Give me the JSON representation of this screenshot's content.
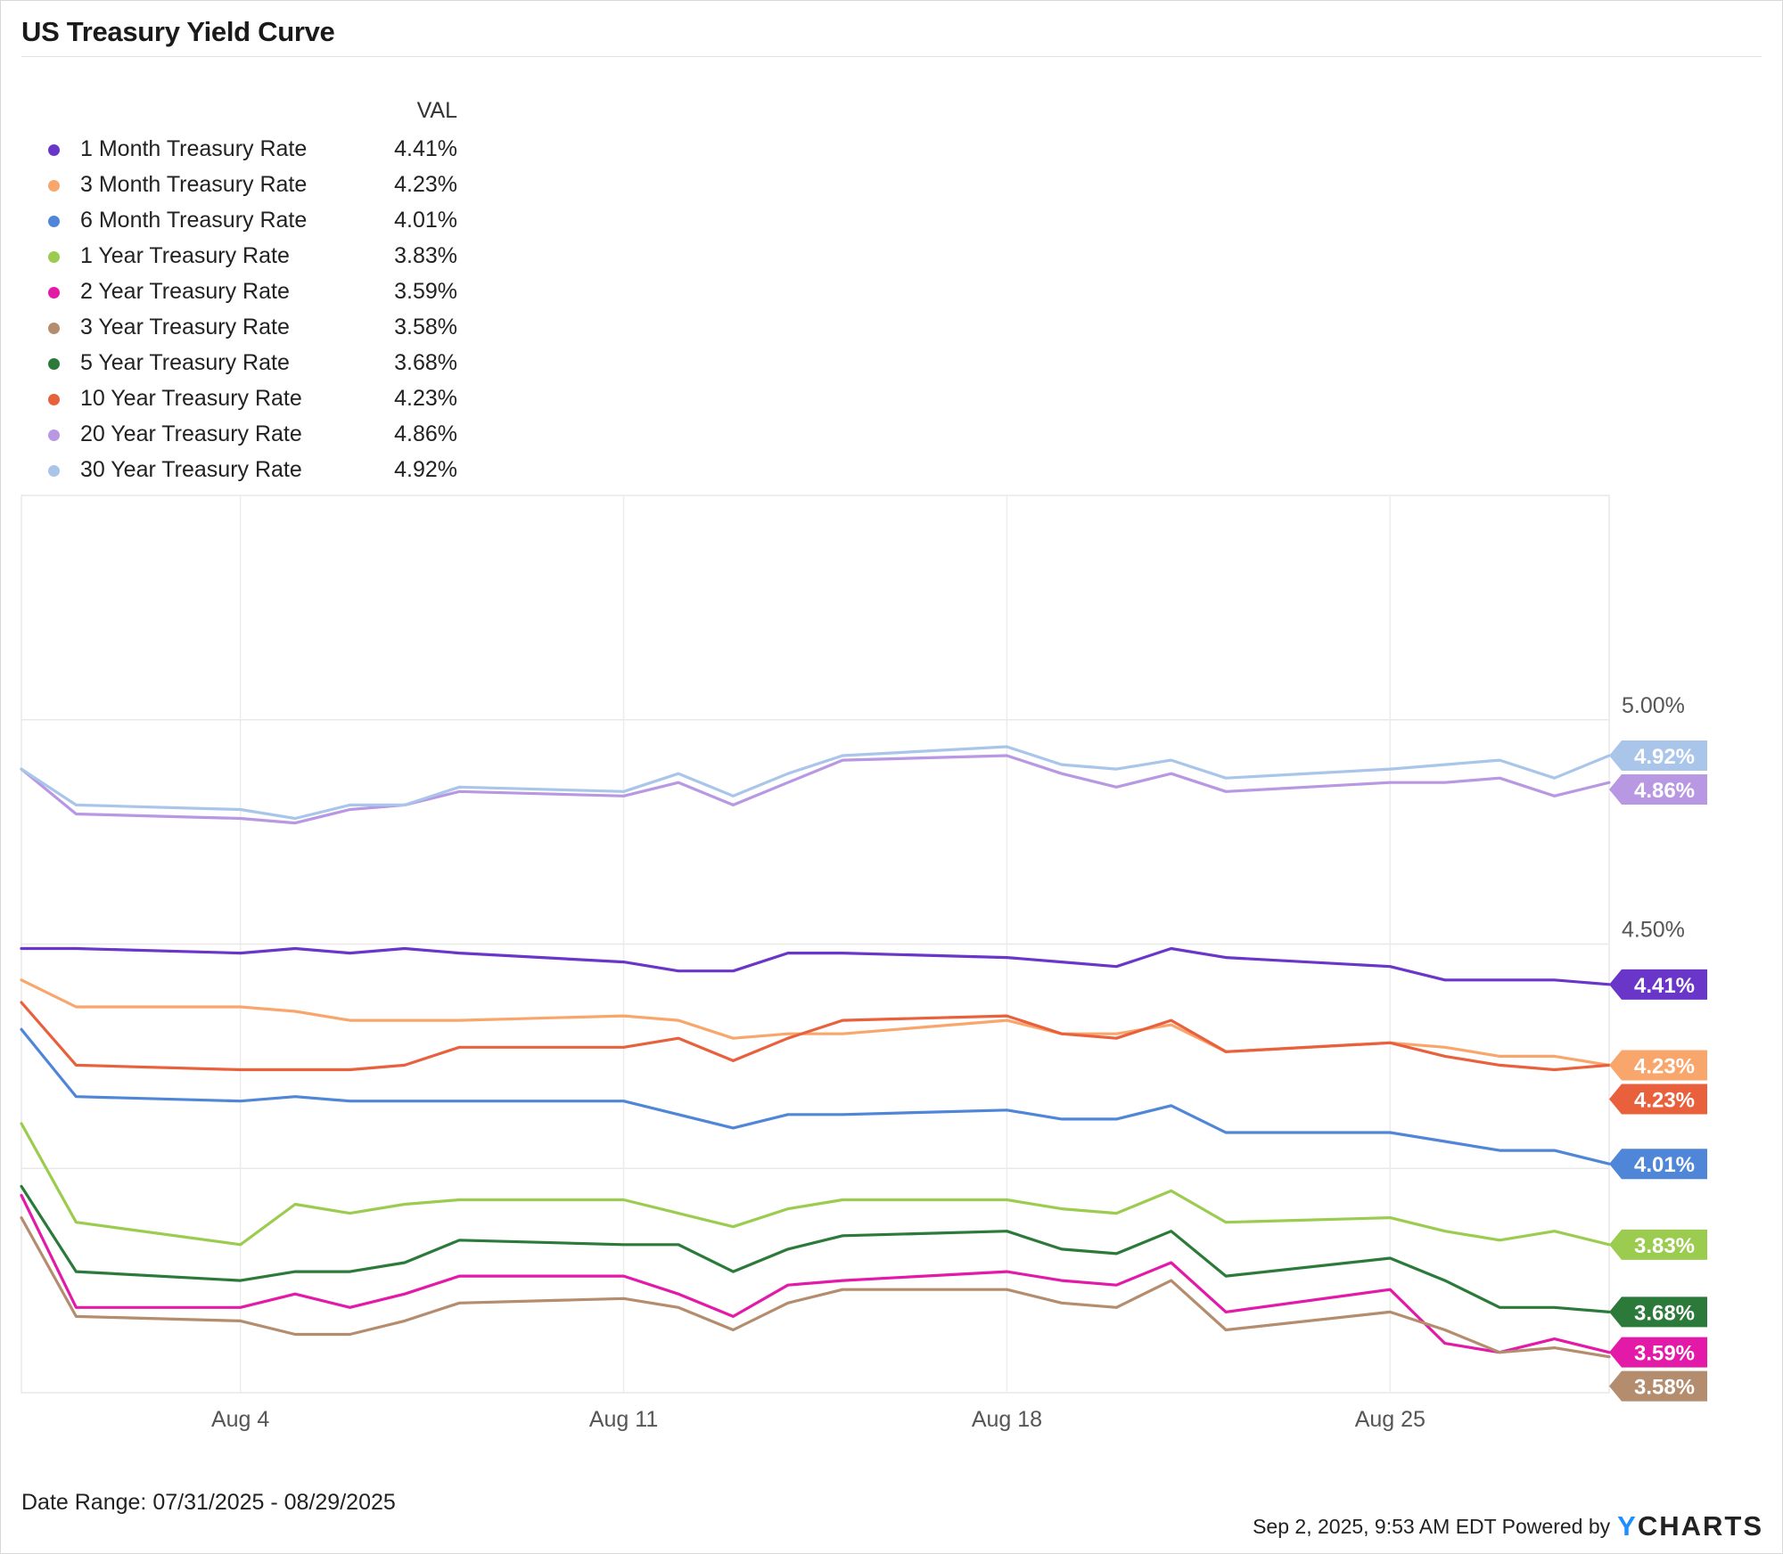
{
  "title": "US Treasury Yield Curve",
  "legend_header": "VAL",
  "footer": {
    "date_range": "Date Range: 07/31/2025 - 08/29/2025",
    "timestamp": "Sep 2, 2025, 9:53 AM EDT Powered by",
    "brand_y": "Y",
    "brand_rest": "CHARTS"
  },
  "chart_data": {
    "type": "line",
    "title": "US Treasury Yield Curve",
    "x": [
      "2025-07-31",
      "2025-08-01",
      "2025-08-04",
      "2025-08-05",
      "2025-08-06",
      "2025-08-07",
      "2025-08-08",
      "2025-08-11",
      "2025-08-12",
      "2025-08-13",
      "2025-08-14",
      "2025-08-15",
      "2025-08-18",
      "2025-08-19",
      "2025-08-20",
      "2025-08-21",
      "2025-08-22",
      "2025-08-25",
      "2025-08-26",
      "2025-08-27",
      "2025-08-28",
      "2025-08-29"
    ],
    "x_tick_labels": [
      {
        "date": "2025-08-04",
        "label": "Aug 4"
      },
      {
        "date": "2025-08-11",
        "label": "Aug 11"
      },
      {
        "date": "2025-08-18",
        "label": "Aug 18"
      },
      {
        "date": "2025-08-25",
        "label": "Aug 25"
      }
    ],
    "y_ticks": [
      {
        "value": 5.0,
        "label": "5.00%"
      },
      {
        "value": 4.5,
        "label": "4.50%"
      }
    ],
    "y_gridlines": [
      5.0,
      4.5,
      4.0
    ],
    "ylim": [
      3.5,
      5.5
    ],
    "y_unit": "%",
    "grid": true,
    "legend_position": "top-left",
    "series": [
      {
        "name": "1 Month Treasury Rate",
        "label": "4.41%",
        "color": "#6a35c9",
        "values": [
          4.49,
          4.49,
          4.48,
          4.49,
          4.48,
          4.49,
          4.48,
          4.46,
          4.44,
          4.44,
          4.48,
          4.48,
          4.47,
          4.46,
          4.45,
          4.49,
          4.47,
          4.45,
          4.42,
          4.42,
          4.42,
          4.41
        ]
      },
      {
        "name": "3 Month Treasury Rate",
        "label": "4.23%",
        "color": "#f9a66c",
        "values": [
          4.42,
          4.36,
          4.36,
          4.35,
          4.33,
          4.33,
          4.33,
          4.34,
          4.33,
          4.29,
          4.3,
          4.3,
          4.33,
          4.3,
          4.3,
          4.32,
          4.26,
          4.28,
          4.27,
          4.25,
          4.25,
          4.23
        ]
      },
      {
        "name": "6 Month Treasury Rate",
        "label": "4.01%",
        "color": "#4f86d8",
        "values": [
          4.31,
          4.16,
          4.15,
          4.16,
          4.15,
          4.15,
          4.15,
          4.15,
          4.12,
          4.09,
          4.12,
          4.12,
          4.13,
          4.11,
          4.11,
          4.14,
          4.08,
          4.08,
          4.06,
          4.04,
          4.04,
          4.01
        ]
      },
      {
        "name": "1 Year Treasury Rate",
        "label": "3.83%",
        "color": "#9ccc4f",
        "values": [
          4.1,
          3.88,
          3.83,
          3.92,
          3.9,
          3.92,
          3.93,
          3.93,
          3.9,
          3.87,
          3.91,
          3.93,
          3.93,
          3.91,
          3.9,
          3.95,
          3.88,
          3.89,
          3.86,
          3.84,
          3.86,
          3.83
        ]
      },
      {
        "name": "2 Year Treasury Rate",
        "label": "3.59%",
        "color": "#e31aa8",
        "values": [
          3.94,
          3.69,
          3.69,
          3.72,
          3.69,
          3.72,
          3.76,
          3.76,
          3.72,
          3.67,
          3.74,
          3.75,
          3.77,
          3.75,
          3.74,
          3.79,
          3.68,
          3.73,
          3.61,
          3.59,
          3.62,
          3.59
        ]
      },
      {
        "name": "3 Year Treasury Rate",
        "label": "3.58%",
        "color": "#b48c6e",
        "values": [
          3.89,
          3.67,
          3.66,
          3.63,
          3.63,
          3.66,
          3.7,
          3.71,
          3.69,
          3.64,
          3.7,
          3.73,
          3.73,
          3.7,
          3.69,
          3.75,
          3.64,
          3.68,
          3.64,
          3.59,
          3.6,
          3.58
        ]
      },
      {
        "name": "5 Year Treasury Rate",
        "label": "3.68%",
        "color": "#2c7a3a",
        "values": [
          3.96,
          3.77,
          3.75,
          3.77,
          3.77,
          3.79,
          3.84,
          3.83,
          3.83,
          3.77,
          3.82,
          3.85,
          3.86,
          3.82,
          3.81,
          3.86,
          3.76,
          3.8,
          3.75,
          3.69,
          3.69,
          3.68
        ]
      },
      {
        "name": "10 Year Treasury Rate",
        "label": "4.23%",
        "color": "#e8603c",
        "values": [
          4.37,
          4.23,
          4.22,
          4.22,
          4.22,
          4.23,
          4.27,
          4.27,
          4.29,
          4.24,
          4.29,
          4.33,
          4.34,
          4.3,
          4.29,
          4.33,
          4.26,
          4.28,
          4.25,
          4.23,
          4.22,
          4.23
        ]
      },
      {
        "name": "20 Year Treasury Rate",
        "label": "4.86%",
        "color": "#b897e3",
        "values": [
          4.89,
          4.79,
          4.78,
          4.77,
          4.8,
          4.81,
          4.84,
          4.83,
          4.86,
          4.81,
          4.86,
          4.91,
          4.92,
          4.88,
          4.85,
          4.88,
          4.84,
          4.86,
          4.86,
          4.87,
          4.83,
          4.86
        ]
      },
      {
        "name": "30 Year Treasury Rate",
        "label": "4.92%",
        "color": "#a9c5ea",
        "values": [
          4.89,
          4.81,
          4.8,
          4.78,
          4.81,
          4.81,
          4.85,
          4.84,
          4.88,
          4.83,
          4.88,
          4.92,
          4.94,
          4.9,
          4.89,
          4.91,
          4.87,
          4.89,
          4.9,
          4.91,
          4.87,
          4.92
        ]
      }
    ]
  }
}
